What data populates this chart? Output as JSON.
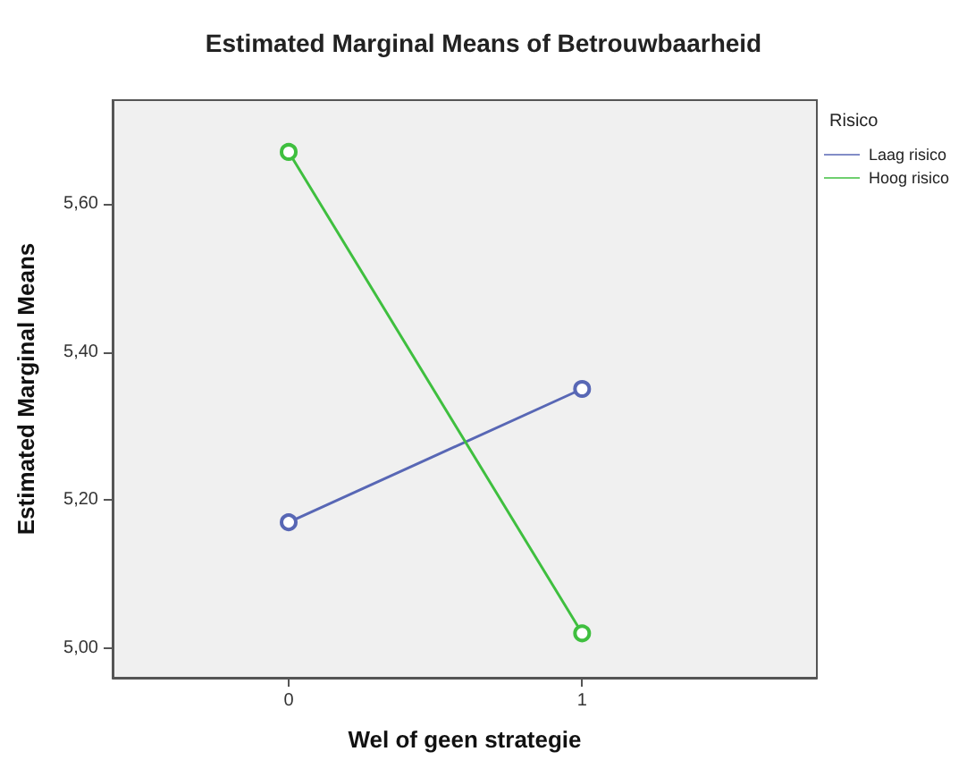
{
  "chart_data": {
    "type": "line",
    "title": "Estimated Marginal Means of Betrouwbaarheid",
    "xlabel": "Wel of geen strategie",
    "ylabel": "Estimated Marginal Means",
    "legend_title": "Risico",
    "x": [
      0,
      1
    ],
    "series": [
      {
        "name": "Laag risico",
        "color": "#5867b5",
        "values": [
          5.17,
          5.35
        ]
      },
      {
        "name": "Hoog risico",
        "color": "#3fbf3f",
        "values": [
          5.67,
          5.02
        ]
      }
    ],
    "xlim": [
      -0.6,
      1.8
    ],
    "xticks": [
      0,
      1
    ],
    "ylim": [
      4.96,
      5.74
    ],
    "yticks": [
      {
        "value": 5.0,
        "label": "5,00"
      },
      {
        "value": 5.2,
        "label": "5,20"
      },
      {
        "value": 5.4,
        "label": "5,40"
      },
      {
        "value": 5.6,
        "label": "5,60"
      }
    ],
    "grid": false,
    "legend": "right",
    "marker": "circle",
    "line_style": "solid"
  }
}
